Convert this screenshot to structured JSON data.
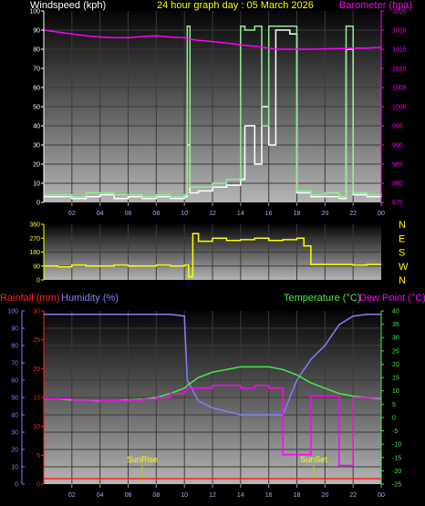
{
  "title": "24 hour graph day : 05 March 2026",
  "hour_labels": [
    "02",
    "04",
    "06",
    "08",
    "10",
    "12",
    "14",
    "16",
    "18",
    "20",
    "22",
    "00"
  ],
  "wind_panel": {
    "left_label": "Windspeed (kph)",
    "right_label": "Barometer (hpa)",
    "left_ticks": [
      "0",
      "10",
      "20",
      "30",
      "40",
      "50",
      "60",
      "70",
      "80",
      "90",
      "100"
    ],
    "right_ticks": [
      "975",
      "980",
      "985",
      "990",
      "995",
      "1000",
      "1005",
      "1010",
      "1015",
      "1020",
      "1025"
    ]
  },
  "dir_panel": {
    "left_ticks": [
      "0",
      "90",
      "180",
      "270",
      "360"
    ],
    "compass": [
      "N",
      "W",
      "S",
      "E",
      "N"
    ]
  },
  "rain_panel": {
    "rain_label": "Rainfall (mm)",
    "humidity_label": "Humidity (%)",
    "temp_label": "Temperature (°C)",
    "dew_label": "Dew Point (°C)",
    "humidity_ticks": [
      "0",
      "10",
      "20",
      "30",
      "40",
      "50",
      "60",
      "70",
      "80",
      "90",
      "100"
    ],
    "rain_ticks": [
      "0",
      "5",
      "10",
      "15",
      "20",
      "25",
      "30"
    ],
    "temp_ticks": [
      "-25",
      "-20",
      "-15",
      "-10",
      "-5",
      "0",
      "5",
      "10",
      "15",
      "20",
      "25",
      "30",
      "35",
      "40"
    ],
    "sunrise_label": "SunRise",
    "sunset_label": "SunSet"
  },
  "colors": {
    "windspeed": "#ffffff",
    "gust": "#90ee90",
    "barometer": "#ff00ff",
    "direction": "#ffff00",
    "rainfall": "#ff2020",
    "humidity": "#8080ff",
    "temperature": "#44ee44",
    "dewpoint": "#ff00ff"
  },
  "chart_data": [
    {
      "type": "line",
      "title": "24 hour graph day : 05 March 2026",
      "xlabel": "",
      "ylabel": "Windspeed (kph)",
      "y2label": "Barometer (hpa)",
      "xlim": [
        0,
        24
      ],
      "ylim": [
        0,
        100
      ],
      "y2lim": [
        975,
        1025
      ],
      "x": [
        0,
        1,
        2,
        3,
        4,
        5,
        6,
        7,
        8,
        9,
        10,
        10.2,
        10.4,
        11,
        12,
        13,
        14,
        14.3,
        15,
        15.5,
        16,
        16.5,
        17,
        17.5,
        18,
        19,
        20,
        21,
        21.5,
        22,
        23,
        24
      ],
      "series": [
        {
          "name": "Windspeed",
          "axis": "left",
          "values": [
            3,
            3,
            2,
            3,
            4,
            2,
            3,
            2,
            3,
            2,
            3,
            30,
            5,
            6,
            8,
            9,
            12,
            40,
            20,
            50,
            30,
            90,
            90,
            88,
            5,
            3,
            3,
            2,
            80,
            4,
            3,
            4
          ]
        },
        {
          "name": "Gust",
          "axis": "left",
          "values": [
            4,
            4,
            3,
            5,
            5,
            4,
            4,
            3,
            4,
            3,
            4,
            92,
            8,
            8,
            10,
            12,
            92,
            90,
            92,
            40,
            92,
            92,
            92,
            92,
            6,
            4,
            5,
            3,
            92,
            5,
            4,
            5
          ]
        },
        {
          "name": "Barometer",
          "axis": "right",
          "values": [
            1020,
            1019.5,
            1019,
            1018.5,
            1018.2,
            1018,
            1018,
            1018.3,
            1018.5,
            1018.2,
            1018,
            1017.8,
            1017.6,
            1017.3,
            1017,
            1016.6,
            1016.2,
            1016,
            1015.8,
            1015.5,
            1015.3,
            1015,
            1015,
            1015,
            1015,
            1015,
            1015.1,
            1015.2,
            1015.2,
            1015.3,
            1015.3,
            1015.5
          ]
        }
      ]
    },
    {
      "type": "line",
      "ylabel": "",
      "xlim": [
        0,
        24
      ],
      "ylim": [
        0,
        360
      ],
      "x": [
        0,
        1,
        2,
        3,
        4,
        5,
        6,
        7,
        8,
        9,
        10,
        10.3,
        10.6,
        11,
        12,
        13,
        14,
        15,
        16,
        17,
        18,
        18.5,
        19,
        20,
        21,
        22,
        23,
        24
      ],
      "series": [
        {
          "name": "Direction",
          "values": [
            90,
            85,
            95,
            90,
            90,
            95,
            90,
            90,
            95,
            90,
            95,
            20,
            300,
            250,
            270,
            255,
            260,
            270,
            255,
            260,
            270,
            220,
            100,
            100,
            100,
            95,
            100,
            100
          ]
        }
      ]
    },
    {
      "type": "line",
      "xlim": [
        0,
        24
      ],
      "ylim": [
        0,
        100
      ],
      "y2lim": [
        -25,
        40
      ],
      "rain_lim": [
        0,
        30
      ],
      "x": [
        0,
        1,
        2,
        3,
        4,
        5,
        6,
        7,
        8,
        9,
        10,
        10.2,
        11,
        12,
        13,
        14,
        15,
        16,
        17,
        18,
        19,
        20,
        21,
        22,
        23,
        24
      ],
      "series": [
        {
          "name": "Humidity",
          "axis": "left",
          "values": [
            98,
            98,
            98,
            98,
            98,
            98,
            98,
            98,
            98,
            98,
            97,
            60,
            48,
            44,
            42,
            40,
            40,
            40,
            40,
            60,
            72,
            80,
            92,
            97,
            98,
            98
          ]
        },
        {
          "name": "Temperature",
          "axis": "right",
          "values": [
            7,
            7,
            6.5,
            6.5,
            6.2,
            6.2,
            6.5,
            6.8,
            7.5,
            9,
            11,
            12,
            15,
            17,
            18,
            19,
            19,
            19,
            18,
            16,
            13,
            11,
            9,
            8,
            7.5,
            7
          ]
        },
        {
          "name": "Dew Point",
          "axis": "right",
          "values": [
            7,
            7,
            6.5,
            6.5,
            6.2,
            6.2,
            6.5,
            6.8,
            7.5,
            9,
            10,
            11,
            11,
            12,
            12,
            11,
            12,
            11,
            -14,
            -14,
            8,
            8,
            -18,
            7.5,
            7.5,
            7
          ]
        },
        {
          "name": "Rainfall",
          "axis": "rain",
          "values": [
            0,
            0,
            0,
            0,
            0,
            0,
            0,
            0,
            0,
            0,
            0,
            0,
            0,
            0,
            0,
            0,
            0,
            0,
            0,
            0,
            0,
            0,
            0,
            0,
            0,
            0
          ]
        }
      ],
      "sunrise": 7,
      "sunset": 19.2
    }
  ]
}
